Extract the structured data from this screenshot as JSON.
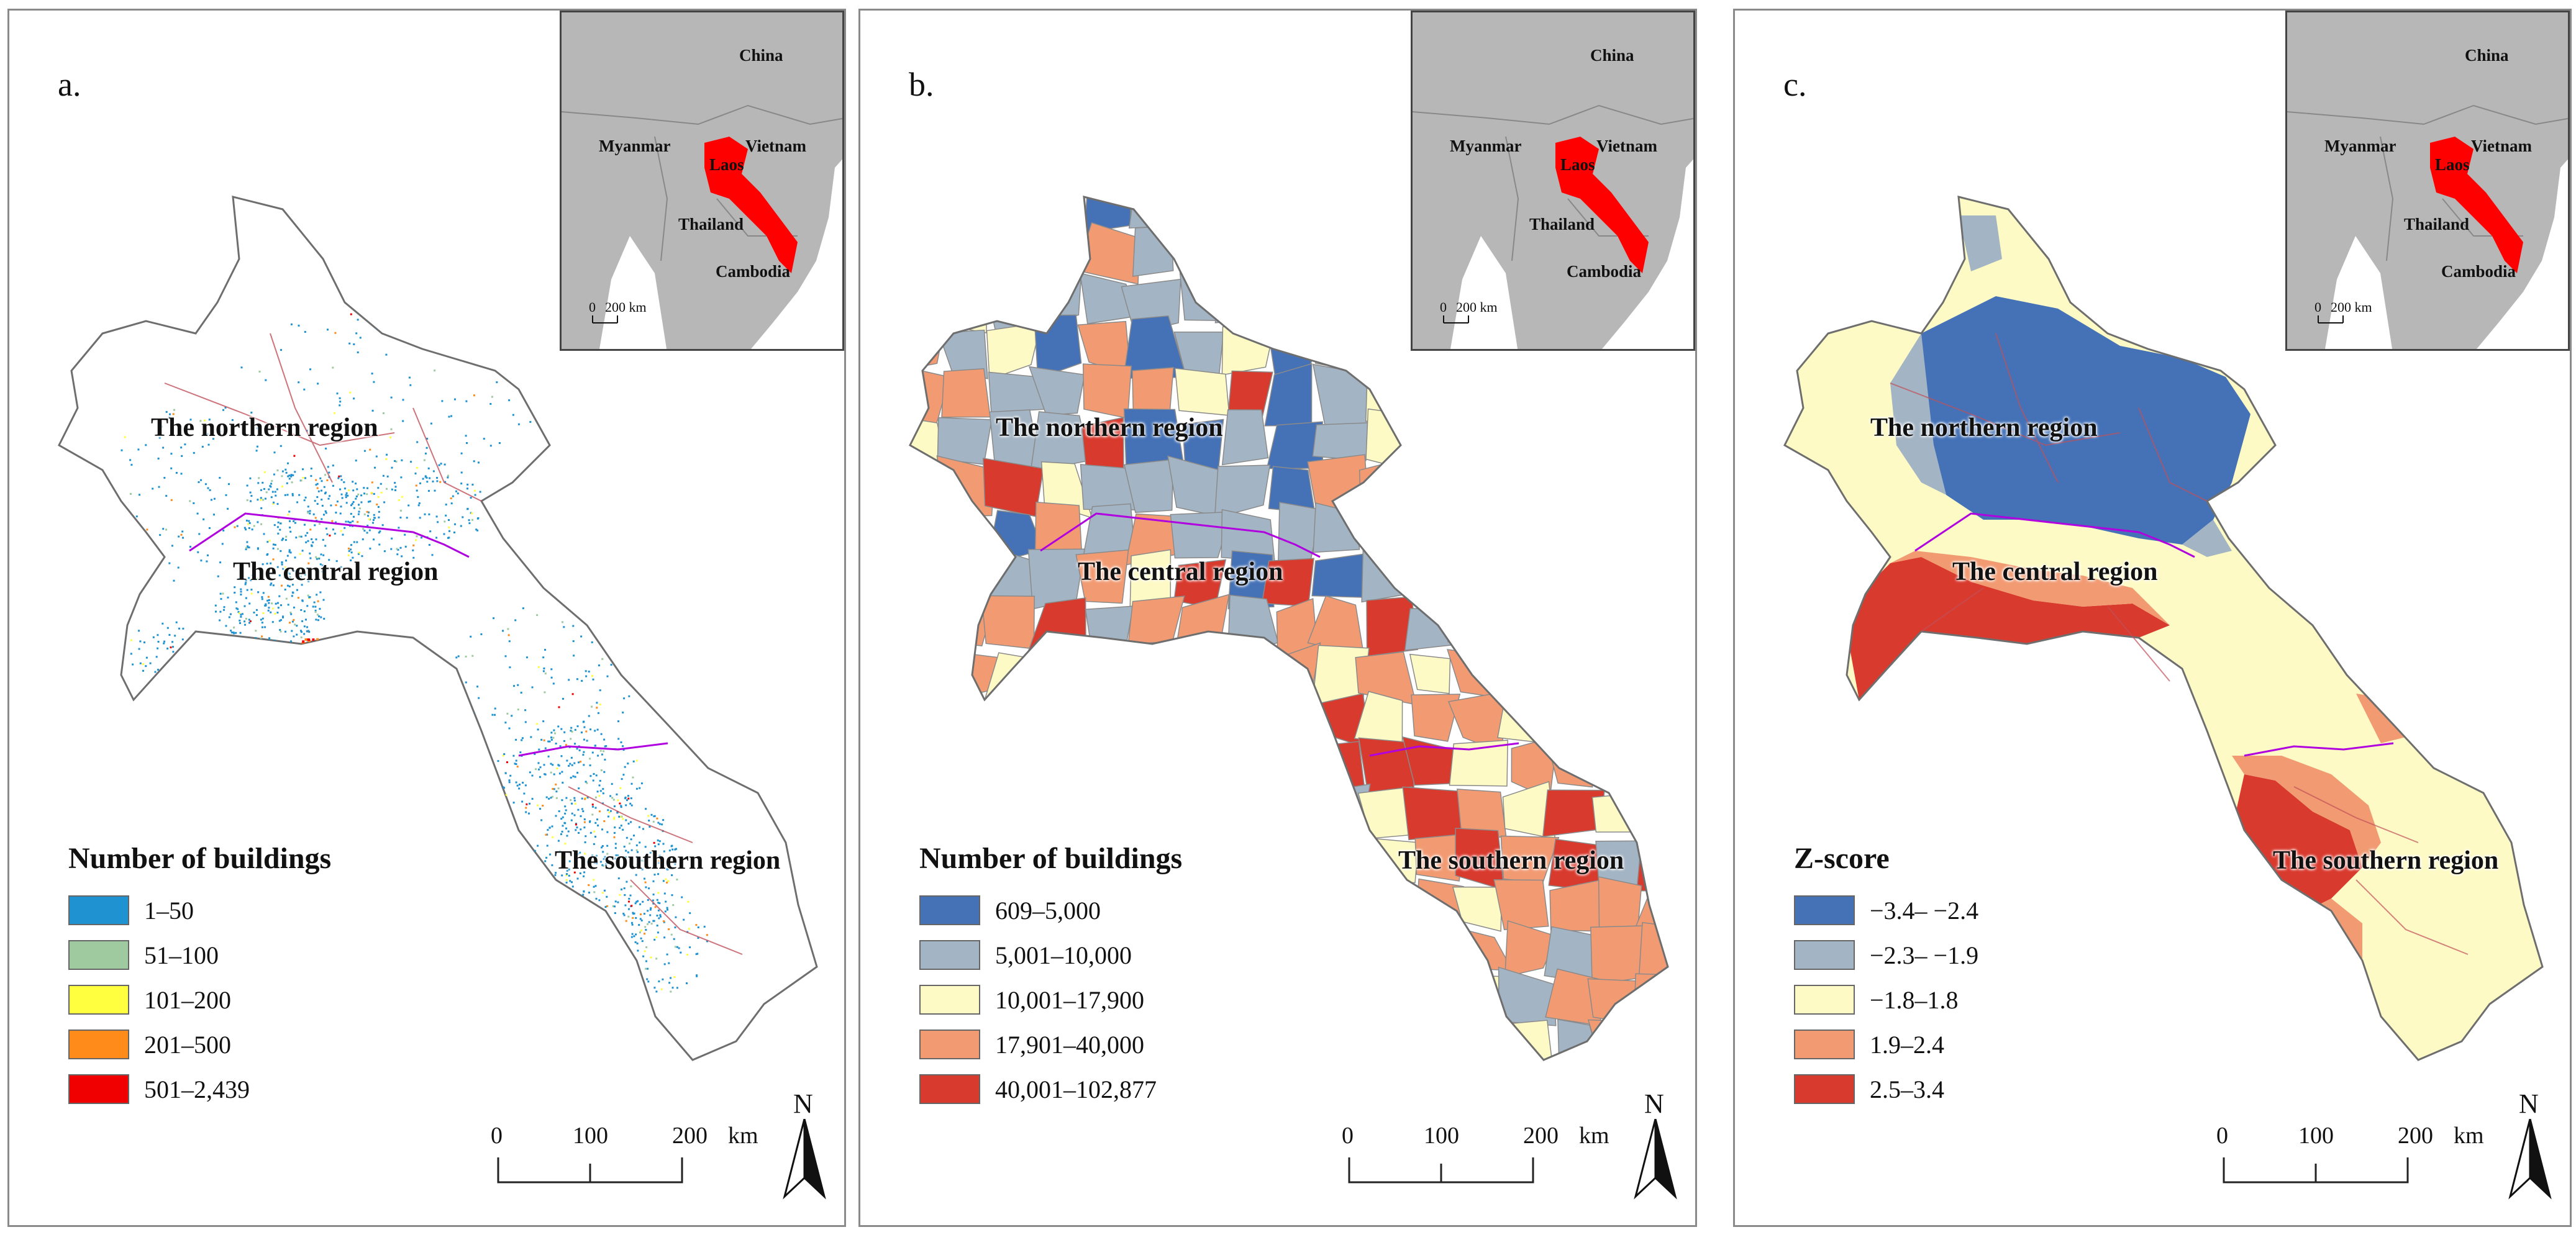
{
  "panels": [
    {
      "label": "a.",
      "legend_title": "Number of buildings",
      "legend": [
        {
          "text": "1–50",
          "color": "#1f93d2"
        },
        {
          "text": "51–100",
          "color": "#9fca9f"
        },
        {
          "text": "101–200",
          "color": "#ffff40"
        },
        {
          "text": "201–500",
          "color": "#ff8c1a"
        },
        {
          "text": "501–2,439",
          "color": "#f00000"
        }
      ]
    },
    {
      "label": "b.",
      "legend_title": "Number of buildings",
      "legend": [
        {
          "text": "609–5,000",
          "color": "#4572b7"
        },
        {
          "text": "5,001–10,000",
          "color": "#a3b4c4"
        },
        {
          "text": "10,001–17,900",
          "color": "#fdfac5"
        },
        {
          "text": "17,901–40,000",
          "color": "#f29b73"
        },
        {
          "text": "40,001–102,877",
          "color": "#d93a2e"
        }
      ]
    },
    {
      "label": "c.",
      "legend_title": "Z-score",
      "legend": [
        {
          "text": "−3.4– −2.4",
          "color": "#4572b7"
        },
        {
          "text": "−2.3– −1.9",
          "color": "#a3b4c4"
        },
        {
          "text": "−1.8–1.8",
          "color": "#fdfac5"
        },
        {
          "text": "1.9–2.4",
          "color": "#f29b73"
        },
        {
          "text": "2.5–3.4",
          "color": "#d93a2e"
        }
      ]
    }
  ],
  "regions": {
    "north": "The northern region",
    "central": "The central region",
    "south": "The southern region"
  },
  "inset": {
    "china": "China",
    "myanmar": "Myanmar",
    "vietnam": "Vietnam",
    "laos": "Laos",
    "thailand": "Thailand",
    "cambodia": "Cambodia",
    "scale_zero": "0",
    "scale_label": "200 km",
    "laos_color": "#ff0000",
    "land_color": "#b7b7b7",
    "sea_color": "#ffffff"
  },
  "scale": {
    "t0": "0",
    "t1": "100",
    "t2": "200",
    "unit": "km"
  },
  "north": "N",
  "colors": {
    "border": "#6e6e6e",
    "region_line": "#b000e0",
    "province_line": "#c0505a"
  }
}
